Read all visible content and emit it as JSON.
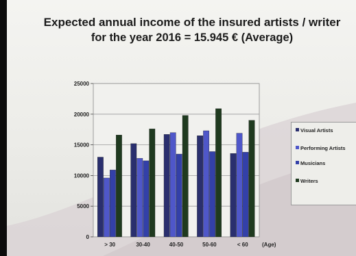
{
  "title_line1": "Expected annual income of the insured artists / writer",
  "title_line2": "for the year 2016 = 15.945 € (Average)",
  "legend": {
    "items": [
      {
        "label": "Visual Artists",
        "color": "#2a2f6e"
      },
      {
        "label": "Performing Artists",
        "color": "#4f57c9"
      },
      {
        "label": "Musicians",
        "color": "#3340a8"
      },
      {
        "label": "Writers",
        "color": "#1f3a1f"
      }
    ]
  },
  "chart_data": {
    "type": "bar",
    "categories": [
      "> 30",
      "30-40",
      "40-50",
      "50-60",
      "< 60"
    ],
    "xlabel": "(Age)",
    "ylabel": "",
    "ylim": [
      0,
      25000
    ],
    "yticks": [
      0,
      5000,
      10000,
      15000,
      20000,
      25000
    ],
    "grid": true,
    "legend_position": "right",
    "series": [
      {
        "name": "Visual Artists",
        "color": "#2a2f6e",
        "values": [
          13000,
          15200,
          16700,
          16500,
          13600
        ]
      },
      {
        "name": "Performing Artists",
        "color": "#4f57c9",
        "values": [
          9600,
          12800,
          17000,
          17300,
          16900
        ]
      },
      {
        "name": "Musicians",
        "color": "#3340a8",
        "values": [
          10900,
          12400,
          13500,
          13900,
          13800
        ]
      },
      {
        "name": "Writers",
        "color": "#1f3a1f",
        "values": [
          16600,
          17600,
          19800,
          20900,
          19000
        ]
      }
    ]
  }
}
